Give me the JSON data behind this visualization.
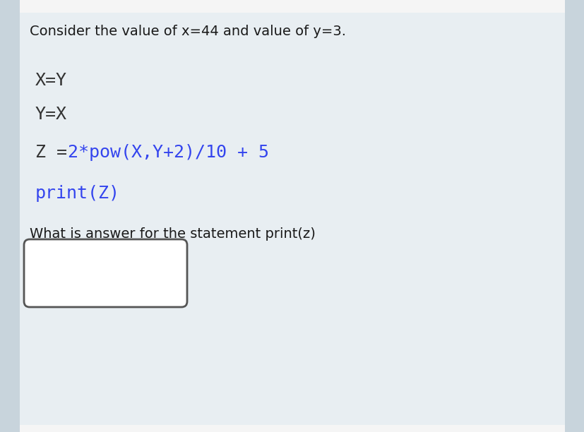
{
  "bg_color": "#e8eef2",
  "top_bar_color": "#f5f5f5",
  "bottom_bar_color": "#f5f5f5",
  "side_color": "#c8d4dc",
  "intro_text": "Consider the value of x=44 and value of y=3.",
  "intro_fontsize": 14,
  "intro_color": "#1a1a1a",
  "question_text": "What is answer for the statement print(z)",
  "question_fontsize": 14,
  "question_color": "#1a1a1a",
  "box_color": "#ffffff",
  "box_border_color": "#555555",
  "code_dark_color": "#333333",
  "code_blue_color": "#3344ee",
  "code_fontsize": 18,
  "line1": "X=Y",
  "line2": "Y=X",
  "line3_left": "Z = ",
  "line3_right": "2*pow(X,Y+2)/10 + 5",
  "line4": "print(Z)"
}
